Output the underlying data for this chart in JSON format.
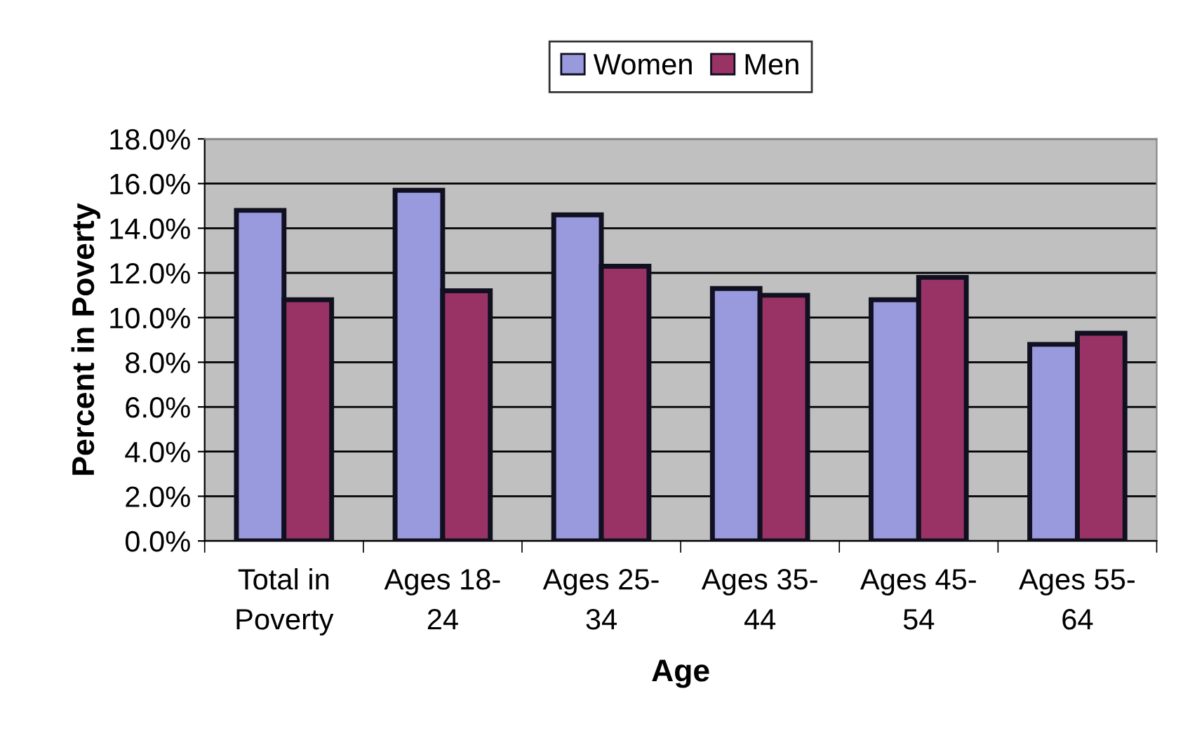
{
  "chart_data": {
    "type": "bar",
    "xlabel": "Age",
    "ylabel": "Percent in Poverty",
    "categories": [
      "Total in\nPoverty",
      "Ages 18-\n24",
      "Ages 25-\n34",
      "Ages 35-\n44",
      "Ages 45-\n54",
      "Ages 55-\n64"
    ],
    "series": [
      {
        "name": "Women",
        "color": "#9999dd",
        "values": [
          14.8,
          15.7,
          14.6,
          11.3,
          10.8,
          8.8
        ]
      },
      {
        "name": "Men",
        "color": "#993366",
        "values": [
          10.8,
          11.2,
          12.3,
          11.0,
          11.8,
          9.3
        ]
      }
    ],
    "ylim": [
      0,
      18
    ],
    "yticks": [
      {
        "value": 0,
        "label": "0.0%"
      },
      {
        "value": 2,
        "label": "2.0%"
      },
      {
        "value": 4,
        "label": "4.0%"
      },
      {
        "value": 6,
        "label": "6.0%"
      },
      {
        "value": 8,
        "label": "8.0%"
      },
      {
        "value": 10,
        "label": "10.0%"
      },
      {
        "value": 12,
        "label": "12.0%"
      },
      {
        "value": 14,
        "label": "14.0%"
      },
      {
        "value": 16,
        "label": "16.0%"
      },
      {
        "value": 18,
        "label": "18.0%"
      }
    ],
    "grid": "y",
    "legend": "top"
  }
}
